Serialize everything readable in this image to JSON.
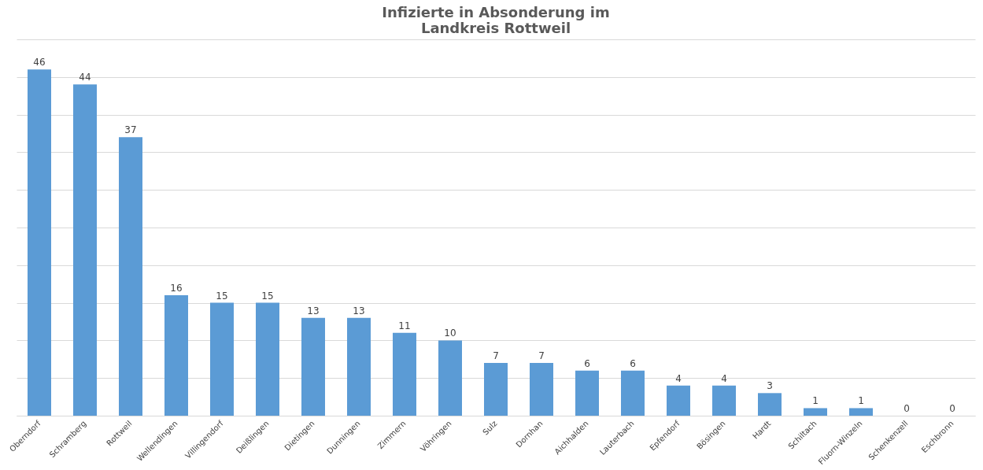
{
  "chart_data": {
    "type": "bar",
    "title": "Infizierte in Absonderung im\nLandkreis Rottweil",
    "categories": [
      "Oberndorf",
      "Schramberg",
      "Rottweil",
      "Wellendingen",
      "Villingendorf",
      "Deißlingen",
      "Dietingen",
      "Dunningen",
      "Zimmern",
      "Vöhringen",
      "Sulz",
      "Dornhan",
      "Aichhalden",
      "Lauterbach",
      "Epfendorf",
      "Bösingen",
      "Hardt",
      "Schiltach",
      "Fluorn-Winzeln",
      "Schenkenzell",
      "Eschbronn"
    ],
    "values": [
      46,
      44,
      37,
      16,
      15,
      15,
      13,
      13,
      11,
      10,
      7,
      7,
      6,
      6,
      4,
      4,
      3,
      1,
      1,
      0,
      0
    ],
    "color": "#5b9bd5",
    "ylim": [
      0,
      50
    ],
    "yticks": [
      {
        "value": 0,
        "label": null
      },
      {
        "value": 5,
        "label": null
      },
      {
        "value": 10,
        "label": null
      },
      {
        "value": 15,
        "label": null
      },
      {
        "value": 20,
        "label": null
      },
      {
        "value": 25,
        "label": null
      },
      {
        "value": 30,
        "label": null
      },
      {
        "value": 35,
        "label": null
      },
      {
        "value": 40,
        "label": null
      },
      {
        "value": 45,
        "label": null
      },
      {
        "value": 50,
        "label": null
      }
    ],
    "tick_labels": "x",
    "grid": "y",
    "data_labels": true
  }
}
